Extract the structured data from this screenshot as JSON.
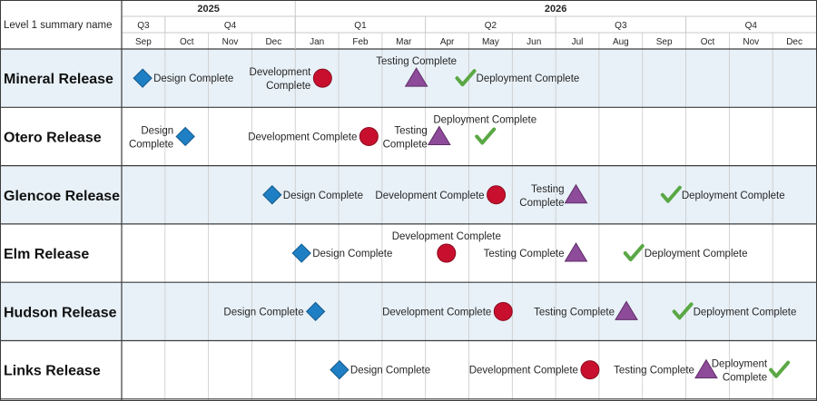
{
  "header": {
    "label": "Level 1 summary name",
    "years": [
      {
        "label": "2025",
        "start": "Sep",
        "end": "Dec"
      },
      {
        "label": "2026",
        "start": "Jan",
        "end": "Dec"
      }
    ],
    "quarters": [
      {
        "label": "Q3",
        "months": [
          "Sep"
        ]
      },
      {
        "label": "Q4",
        "months": [
          "Oct",
          "Nov",
          "Dec"
        ]
      },
      {
        "label": "Q1",
        "months": [
          "Jan",
          "Feb",
          "Mar"
        ]
      },
      {
        "label": "Q2",
        "months": [
          "Apr",
          "May",
          "Jun"
        ]
      },
      {
        "label": "Q3",
        "months": [
          "Jul",
          "Aug",
          "Sep"
        ]
      },
      {
        "label": "Q4",
        "months": [
          "Oct",
          "Nov",
          "Dec"
        ]
      }
    ],
    "months": [
      "Sep",
      "Oct",
      "Nov",
      "Dec",
      "Jan",
      "Feb",
      "Mar",
      "Apr",
      "May",
      "Jun",
      "Jul",
      "Aug",
      "Sep",
      "Oct",
      "Nov",
      "Dec"
    ]
  },
  "colors": {
    "design": "#1f7fc4",
    "development": "#c8102e",
    "testing": "#8e4b9a",
    "deployment": "#5aa845",
    "band": "#e8f1f8",
    "border": "#3c3c3c",
    "grid": "#c9c9c9"
  },
  "milestone_types": {
    "design": "diamond",
    "development": "circle",
    "testing": "triangle",
    "deployment": "checkmark"
  },
  "rows": [
    {
      "name": "Mineral Release",
      "shaded": true,
      "milestones": [
        {
          "type": "design",
          "label": "Design Complete",
          "date": "2025-09-15",
          "label_position": "right"
        },
        {
          "type": "development",
          "label": "Development Complete",
          "date": "2026-01-20",
          "label_position": "left"
        },
        {
          "type": "testing",
          "label": "Testing Complete",
          "date": "2026-03-25",
          "label_position": "above"
        },
        {
          "type": "deployment",
          "label": "Deployment Complete",
          "date": "2026-04-28",
          "label_position": "right"
        }
      ]
    },
    {
      "name": "Otero Release",
      "shaded": false,
      "milestones": [
        {
          "type": "design",
          "label": "Design Complete",
          "date": "2025-10-15",
          "label_position": "left"
        },
        {
          "type": "development",
          "label": "Development Complete",
          "date": "2026-02-20",
          "label_position": "left"
        },
        {
          "type": "testing",
          "label": "Testing Complete",
          "date": "2026-04-10",
          "label_position": "left"
        },
        {
          "type": "deployment",
          "label": "Deployment Complete",
          "date": "2026-05-12",
          "label_position": "above"
        }
      ]
    },
    {
      "name": "Glencoe Release",
      "shaded": true,
      "milestones": [
        {
          "type": "design",
          "label": "Design Complete",
          "date": "2025-12-15",
          "label_position": "right"
        },
        {
          "type": "development",
          "label": "Development Complete",
          "date": "2026-05-20",
          "label_position": "left"
        },
        {
          "type": "testing",
          "label": "Testing Complete",
          "date": "2026-07-15",
          "label_position": "left"
        },
        {
          "type": "deployment",
          "label": "Deployment Complete",
          "date": "2026-09-20",
          "label_position": "right"
        }
      ]
    },
    {
      "name": "Elm Release",
      "shaded": false,
      "milestones": [
        {
          "type": "design",
          "label": "Design Complete",
          "date": "2026-01-05",
          "label_position": "right"
        },
        {
          "type": "development",
          "label": "Development Complete",
          "date": "2026-04-15",
          "label_position": "above"
        },
        {
          "type": "testing",
          "label": "Testing Complete",
          "date": "2026-07-15",
          "label_position": "left"
        },
        {
          "type": "deployment",
          "label": "Deployment Complete",
          "date": "2026-08-25",
          "label_position": "right"
        }
      ]
    },
    {
      "name": "Hudson Release",
      "shaded": true,
      "milestones": [
        {
          "type": "design",
          "label": "Design Complete",
          "date": "2026-01-15",
          "label_position": "left"
        },
        {
          "type": "development",
          "label": "Development Complete",
          "date": "2026-05-25",
          "label_position": "left"
        },
        {
          "type": "testing",
          "label": "Testing Complete",
          "date": "2026-08-20",
          "label_position": "left"
        },
        {
          "type": "deployment",
          "label": "Deployment Complete",
          "date": "2026-09-28",
          "label_position": "right"
        }
      ]
    },
    {
      "name": "Links Release",
      "shaded": false,
      "milestones": [
        {
          "type": "design",
          "label": "Design Complete",
          "date": "2026-02-01",
          "label_position": "right"
        },
        {
          "type": "development",
          "label": "Development Complete",
          "date": "2026-07-25",
          "label_position": "left"
        },
        {
          "type": "testing",
          "label": "Testing Complete",
          "date": "2026-10-15",
          "label_position": "left"
        },
        {
          "type": "deployment",
          "label": "Deployment Complete",
          "date": "2026-12-05",
          "label_position": "left"
        }
      ]
    }
  ]
}
